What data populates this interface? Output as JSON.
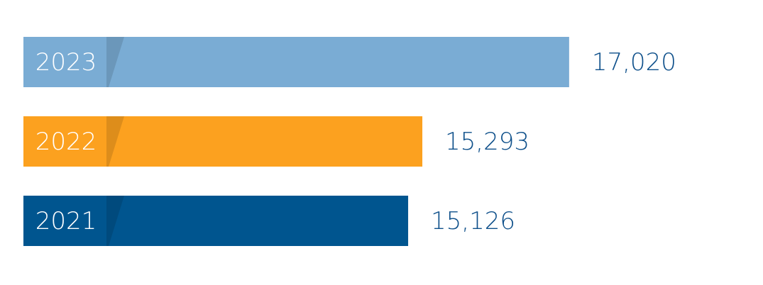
{
  "chart_data": {
    "type": "bar",
    "orientation": "horizontal",
    "categories": [
      "2023",
      "2022",
      "2021"
    ],
    "values": [
      17020,
      15293,
      15126
    ],
    "value_labels": [
      "17,020",
      "15,293",
      "15,126"
    ],
    "colors": [
      "#7aacd4",
      "#fca11f",
      "#00558f"
    ],
    "xlim": [
      10600,
      19000
    ]
  }
}
